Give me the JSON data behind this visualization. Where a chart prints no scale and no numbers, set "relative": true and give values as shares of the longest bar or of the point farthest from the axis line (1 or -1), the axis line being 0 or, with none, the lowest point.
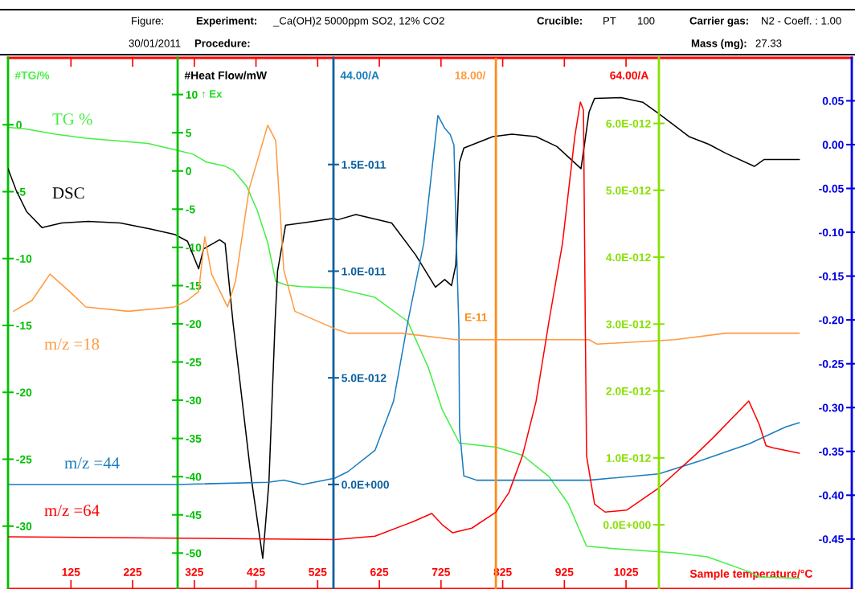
{
  "chart_data": [
    {
      "type": "line",
      "annotations": [
        "Figure:",
        "Experiment:",
        "_Ca(OH)2 5000ppm SO2, 12% CO2",
        "Crucible:",
        "PT",
        "100",
        "Carrier gas:",
        "N2 - Coeff. : 1.00",
        "30/01/2011",
        "Procedure:",
        "Mass (mg):",
        "27.33",
        "↑ Ex"
      ],
      "xlabel": "Sample temperature/°C",
      "ylabel": "#TG/%",
      "y2label": "#Heat Flow/mW",
      "y3label": "44.00/A",
      "xlim": [
        23,
        1391
      ],
      "xticks": [
        125,
        225,
        325,
        425,
        525,
        625,
        725,
        825,
        925,
        1025
      ],
      "ylim": [
        -34.7,
        5.0
      ],
      "yticks": [
        -30,
        -25,
        -20,
        -15,
        -10,
        -5,
        0
      ],
      "y2lim": [
        -54.7,
        14.8
      ],
      "y2ticks": [
        -50,
        -45,
        -40,
        -35,
        -30,
        -25,
        -20,
        -15,
        -10,
        -5,
        0,
        5,
        10
      ],
      "y3lim": [
        -4.9e-12,
        2e-11
      ],
      "y3ticks": [
        {
          "value": 0,
          "label": "0.0E+000"
        },
        {
          "value": 5e-12,
          "label": "5.0E-012"
        },
        {
          "value": 1e-11,
          "label": "1.0E-011"
        },
        {
          "value": 1.5e-11,
          "label": "1.5E-011"
        }
      ],
      "series": [
        {
          "name": "TG %",
          "color": "#44ee44",
          "x": [
            23,
            50,
            100,
            149,
            200,
            250,
            297,
            323,
            345,
            375,
            388,
            410,
            427,
            444,
            457,
            475,
            500,
            553,
            618,
            671,
            704,
            727,
            755,
            814,
            857,
            900,
            931,
            961,
            1009,
            1104,
            1157,
            1224,
            1241,
            1306
          ],
          "values": [
            -0.2,
            -0.3,
            -0.7,
            -1.0,
            -1.2,
            -1.4,
            -1.9,
            -2.2,
            -2.8,
            -3.1,
            -3.4,
            -4.6,
            -6.4,
            -8.8,
            -11.7,
            -12.0,
            -12.1,
            -12.2,
            -12.9,
            -14.7,
            -18.1,
            -21.3,
            -23.8,
            -24.1,
            -24.7,
            -26.3,
            -28.3,
            -31.5,
            -31.7,
            -32.0,
            -32.3,
            -33.4,
            -33.8,
            -33.9
          ]
        },
        {
          "name": "DSC",
          "color": "#000000",
          "axis": "y2",
          "x": [
            23,
            36,
            53,
            78,
            110,
            153,
            205,
            254,
            293,
            314,
            332,
            340,
            366,
            375,
            388,
            417,
            436,
            446,
            456,
            460,
            473,
            509,
            551,
            557,
            587,
            645,
            684,
            716,
            731,
            742,
            749,
            755,
            762,
            809,
            840,
            879,
            913,
            952,
            965,
            974,
            1017,
            1052,
            1078,
            1127,
            1159,
            1187,
            1233,
            1249,
            1306
          ],
          "values": [
            0.3,
            -2.5,
            -5.3,
            -7.4,
            -6.8,
            -6.6,
            -6.8,
            -7.6,
            -8.3,
            -9.2,
            -12.8,
            -10.2,
            -9.0,
            -9.5,
            -20.0,
            -40.0,
            -50.7,
            -40.7,
            -19.7,
            -13.1,
            -7.1,
            -6.7,
            -6.2,
            -6.4,
            -5.7,
            -6.8,
            -11.0,
            -15.2,
            -14.2,
            -15.0,
            -12.3,
            1.1,
            3.0,
            4.5,
            4.8,
            4.5,
            3.2,
            0.3,
            7.7,
            9.5,
            9.6,
            9.0,
            7.5,
            4.5,
            3.5,
            2.3,
            0.6,
            1.5,
            1.5
          ]
        },
        {
          "name": "m/z =44",
          "color": "#1a7dc0",
          "axis": "y3",
          "x": [
            23,
            297,
            444,
            470,
            501,
            553,
            574,
            618,
            648,
            671,
            697,
            720,
            731,
            740,
            746,
            750,
            754,
            755,
            762,
            783,
            879,
            965,
            1078,
            1144,
            1224,
            1284,
            1306
          ],
          "values": [
            0,
            0,
            1e-13,
            2e-13,
            0,
            3e-13,
            6e-13,
            1.6e-12,
            3.9e-12,
            7.6e-12,
            1.13e-11,
            1.73e-11,
            1.67e-11,
            1.64e-11,
            1.59e-11,
            1.13e-11,
            7.3e-12,
            2.6e-12,
            4e-13,
            2e-13,
            2e-13,
            2e-13,
            5e-13,
            1.1e-12,
            1.9e-12,
            2.7e-12,
            2.9e-12
          ]
        }
      ]
    },
    {
      "type": "line",
      "relative": true,
      "tick_labels": false,
      "ylabel": "18.00/",
      "annotations": [
        "E-11"
      ],
      "xlim": [
        23,
        1391
      ],
      "ref_lines": [
        {
          "axis": "x",
          "value": 814,
          "color": "#ff8c1a"
        }
      ],
      "series": [
        {
          "name": "m/z =18",
          "color": "#ff9a40",
          "x": [
            32,
            62,
            91,
            123,
            149,
            218,
            293,
            314,
            332,
            342,
            353,
            379,
            392,
            414,
            444,
            457,
            470,
            488,
            553,
            574,
            661,
            749,
            835,
            965,
            978,
            1104,
            1187,
            1306
          ],
          "values": [
            0.15,
            0.2,
            0.32,
            0.24,
            0.17,
            0.15,
            0.17,
            0.2,
            0.24,
            0.49,
            0.32,
            0.17,
            0.29,
            0.71,
            1.0,
            0.93,
            0.34,
            0.15,
            0.07,
            0.05,
            0.05,
            0.02,
            0.02,
            0.02,
            0,
            0.02,
            0.05,
            0.05
          ]
        }
      ]
    },
    {
      "type": "line",
      "ylabel": "64.00/A",
      "tick_labels": "y",
      "xlim": [
        23,
        1391
      ],
      "ylim": [
        -9.6e-13,
        6.98e-12
      ],
      "yticks": [
        {
          "value": 0,
          "label": "0.0E+000"
        },
        {
          "value": 1e-12,
          "label": "1.0E-012"
        },
        {
          "value": 2e-12,
          "label": "2.0E-012"
        },
        {
          "value": 3e-12,
          "label": "3.0E-012"
        },
        {
          "value": 4e-12,
          "label": "4.0E-012"
        },
        {
          "value": 5e-12,
          "label": "5.0E-012"
        },
        {
          "value": 6e-12,
          "label": "6.0E-012"
        }
      ],
      "y2lim": [
        -0.507,
        0.099
      ],
      "y2ticks": [
        {
          "value": -0.45,
          "label": "-0.45"
        },
        {
          "value": -0.4,
          "label": "-0.40"
        },
        {
          "value": -0.35,
          "label": "-0.35"
        },
        {
          "value": -0.3,
          "label": "-0.30"
        },
        {
          "value": -0.25,
          "label": "-0.25"
        },
        {
          "value": -0.2,
          "label": "-0.20"
        },
        {
          "value": -0.15,
          "label": "-0.15"
        },
        {
          "value": -0.1,
          "label": "-0.10"
        },
        {
          "value": -0.05,
          "label": "-0.05"
        },
        {
          "value": 0,
          "label": "0.00"
        },
        {
          "value": 0.05,
          "label": "0.05"
        }
      ],
      "series": [
        {
          "name": "m/z =64",
          "color": "#ff0000",
          "x": [
            23,
            297,
            553,
            618,
            678,
            710,
            727,
            744,
            775,
            814,
            835,
            857,
            879,
            900,
            922,
            942,
            951,
            956,
            959,
            961,
            974,
            991,
            1026,
            1078,
            1138,
            1166,
            1224,
            1241,
            1252,
            1263,
            1306
          ],
          "values": [
            -1.8e-13,
            -2e-13,
            -2.2e-13,
            -1.7e-13,
            4e-14,
            1.7e-13,
            0,
            -1.2e-13,
            -5e-14,
            1.9e-13,
            4.8e-13,
            1.03e-12,
            1.84e-12,
            3.04e-12,
            4.21e-12,
            5.81e-12,
            6.32e-12,
            6.2e-12,
            2.92e-12,
            1.03e-12,
            3.1e-13,
            1.9e-13,
            2.2e-13,
            5.5e-13,
            1.05e-12,
            1.3e-12,
            1.85e-12,
            1.5e-12,
            1.18e-12,
            1.15e-12,
            1.07e-12
          ]
        }
      ]
    }
  ]
}
